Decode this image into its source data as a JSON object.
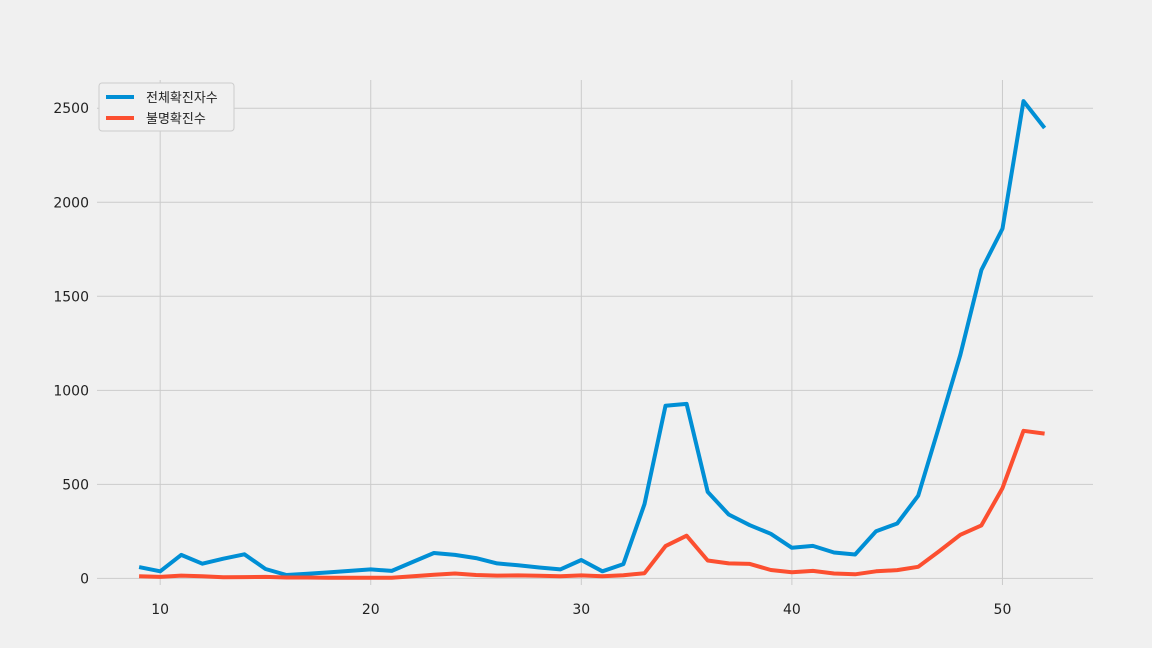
{
  "chart_data": {
    "type": "line",
    "title": "",
    "xlabel": "",
    "ylabel": "",
    "xlim": [
      7,
      54.3
    ],
    "ylim": [
      -35,
      2650
    ],
    "xticks": [
      10,
      20,
      30,
      40,
      50
    ],
    "yticks": [
      0,
      500,
      1000,
      1500,
      2000,
      2500
    ],
    "grid": true,
    "legend_position": "top-left",
    "x": [
      9,
      10,
      11,
      12,
      13,
      14,
      15,
      16,
      17,
      18,
      19,
      20,
      21,
      22,
      23,
      24,
      25,
      26,
      27,
      28,
      29,
      30,
      31,
      32,
      33,
      34,
      35,
      36,
      37,
      38,
      39,
      40,
      41,
      42,
      43,
      44,
      45,
      46,
      47,
      48,
      49,
      50,
      51,
      52
    ],
    "series": [
      {
        "name": "전체확진자수",
        "color": "#008fd5",
        "values": [
          60,
          38,
          125,
          78,
          105,
          128,
          50,
          18,
          25,
          32,
          40,
          48,
          40,
          88,
          135,
          125,
          108,
          80,
          70,
          58,
          48,
          98,
          38,
          76,
          395,
          918,
          928,
          460,
          340,
          283,
          237,
          163,
          173,
          138,
          127,
          251,
          292,
          440,
          812,
          1188,
          1640,
          1860,
          2538,
          2395
        ]
      },
      {
        "name": "불명확진수",
        "color": "#fc4f30",
        "values": [
          12,
          8,
          15,
          12,
          6,
          7,
          8,
          5,
          5,
          4,
          4,
          4,
          4,
          12,
          20,
          26,
          18,
          15,
          16,
          14,
          11,
          16,
          11,
          17,
          28,
          172,
          227,
          95,
          80,
          77,
          45,
          33,
          40,
          26,
          22,
          38,
          44,
          62,
          145,
          232,
          282,
          480,
          785,
          770
        ]
      }
    ]
  }
}
